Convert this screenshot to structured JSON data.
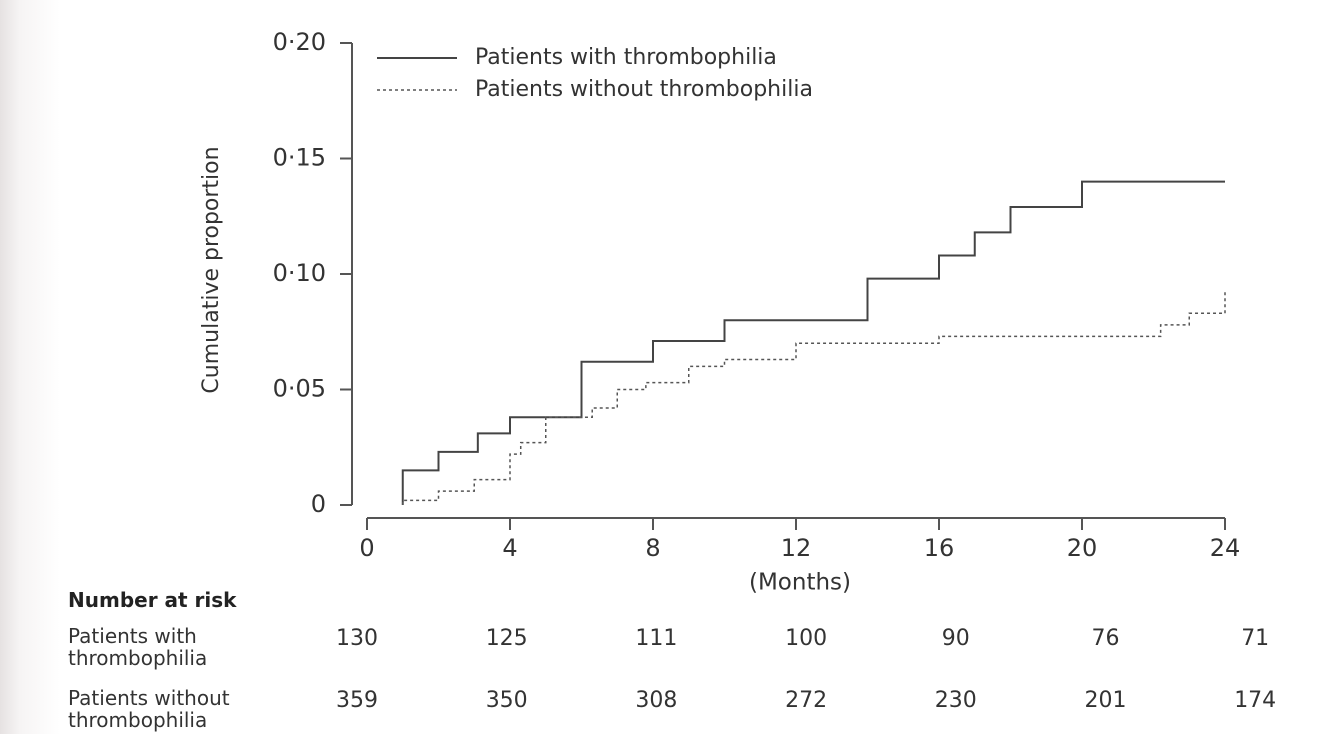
{
  "chart_data": {
    "type": "line",
    "step": true,
    "y_label": "Cumulative proportion",
    "x_label": "(Months)",
    "xlim": [
      0,
      24
    ],
    "xticks": [
      0,
      4,
      8,
      12,
      16,
      20,
      24
    ],
    "ylim": [
      0,
      0.2
    ],
    "yticks": [
      0,
      {
        "value": 0.05,
        "label": "0·05"
      },
      {
        "value": 0.1,
        "label": "0·10"
      },
      {
        "value": 0.15,
        "label": "0·15"
      },
      {
        "value": 0.2,
        "label": "0·20"
      }
    ],
    "series": [
      {
        "name": "Patients with thrombophilia",
        "color": "#444",
        "line_style": "solid",
        "x": [
          1,
          1,
          2,
          3.1,
          4,
          6,
          8,
          10,
          14,
          16,
          17,
          18,
          20,
          24
        ],
        "values": [
          0,
          0.015,
          0.023,
          0.031,
          0.038,
          0.062,
          0.071,
          0.08,
          0.098,
          0.108,
          0.118,
          0.129,
          0.14,
          0.14
        ]
      },
      {
        "name": "Patients without thrombophilia",
        "color": "#555",
        "line_style": "dashed",
        "x": [
          1,
          1,
          2,
          3,
          4,
          4.3,
          5,
          6.3,
          7,
          7.8,
          9,
          10,
          12,
          16,
          22.2,
          23,
          24
        ],
        "values": [
          0,
          0.002,
          0.006,
          0.011,
          0.022,
          0.027,
          0.038,
          0.042,
          0.05,
          0.053,
          0.06,
          0.063,
          0.07,
          0.073,
          0.078,
          0.083,
          0.093
        ]
      }
    ],
    "risk_table": {
      "title": "Number at risk",
      "rows": [
        {
          "label": "Patients with thrombophilia",
          "values": [
            130,
            125,
            111,
            100,
            90,
            76,
            71
          ]
        },
        {
          "label": "Patients without thrombophilia",
          "values": [
            359,
            350,
            308,
            272,
            230,
            201,
            174
          ]
        }
      ]
    }
  }
}
